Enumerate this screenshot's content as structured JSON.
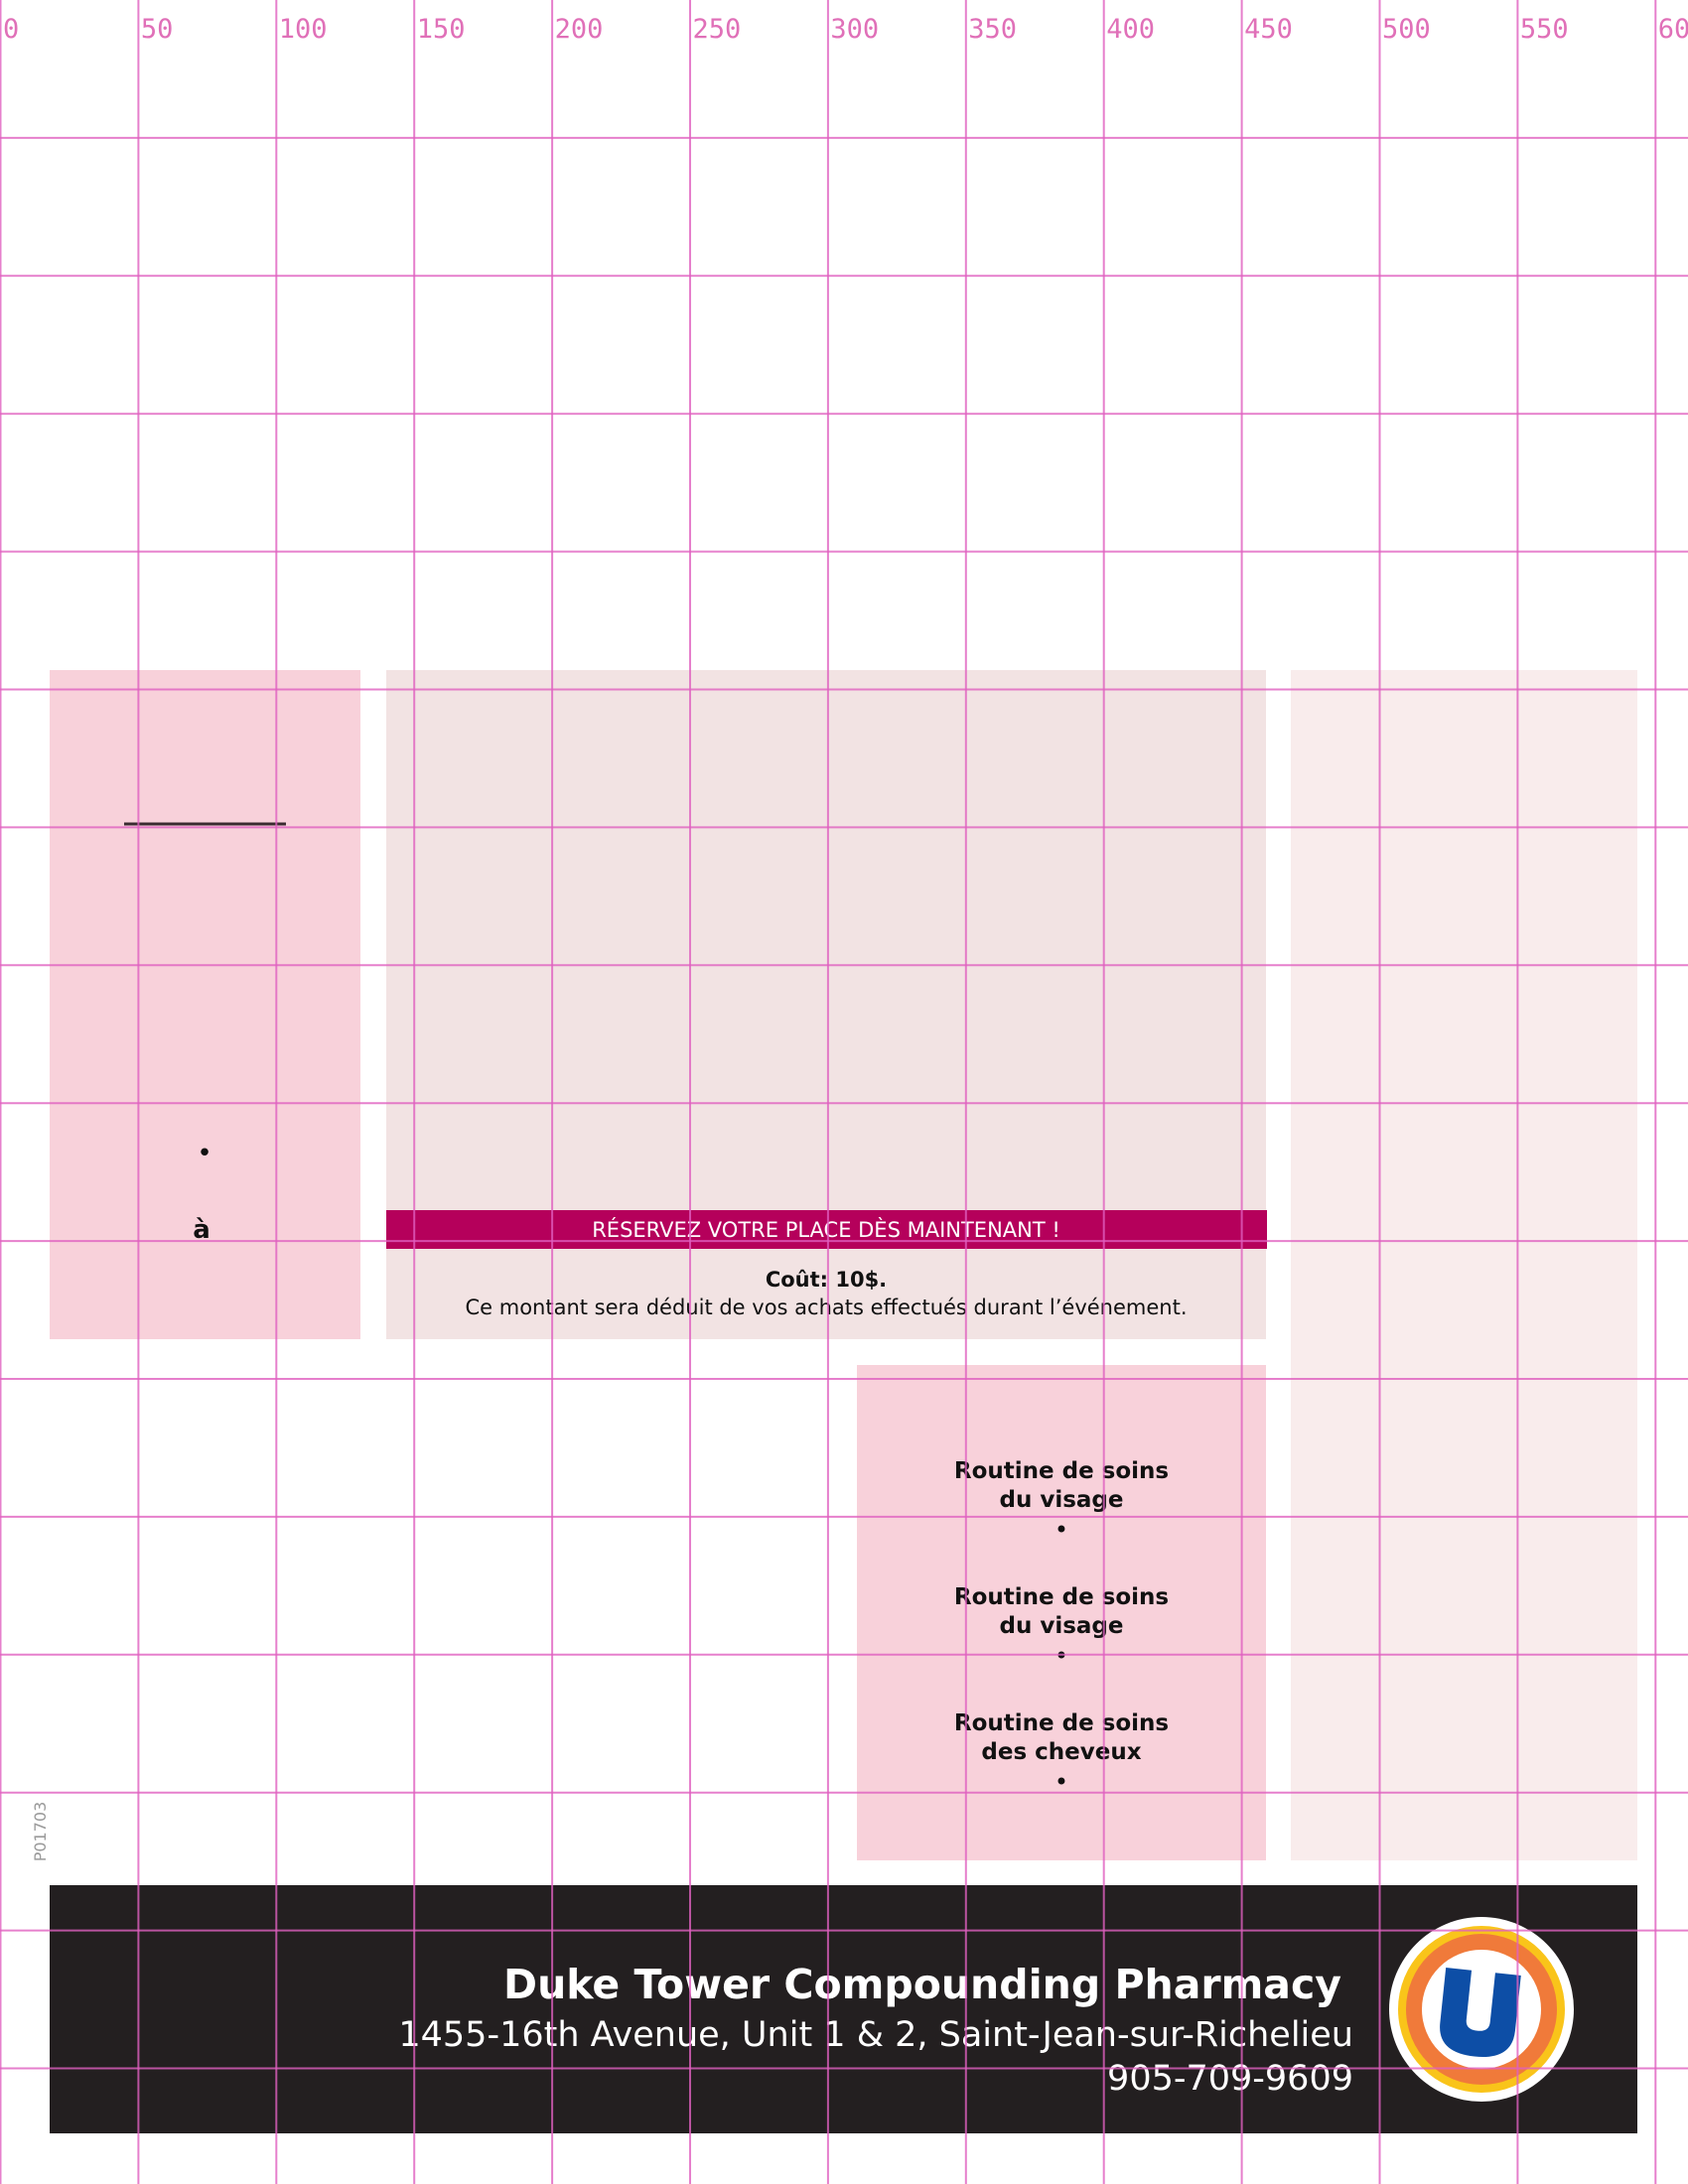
{
  "grid": {
    "labels": [
      "0",
      "50",
      "100",
      "150",
      "200",
      "250",
      "300",
      "350",
      "400",
      "450",
      "500",
      "550",
      "60"
    ]
  },
  "left_panel": {
    "bullet": "•",
    "text": "à"
  },
  "main_panel": {
    "banner": "RÉSERVEZ VOTRE PLACE DÈS MAINTENANT !",
    "cost": "Coût: 10$.",
    "note": "Ce montant sera déduit de vos achats effectués durant l’événement."
  },
  "services": {
    "items": [
      {
        "lines": [
          "Routine de soins",
          "du visage"
        ],
        "bullet": "•"
      },
      {
        "lines": [
          "Routine de soins",
          "du visage"
        ],
        "bullet": "•"
      },
      {
        "lines": [
          "Routine de soins",
          "des cheveux"
        ],
        "bullet": "•"
      }
    ]
  },
  "code": "P01703",
  "footer": {
    "name": "Duke Tower Compounding Pharmacy",
    "address": "1455-16th Avenue, Unit 1 & 2, Saint-Jean-sur-Richelieu",
    "phone": "905-709-9609"
  }
}
